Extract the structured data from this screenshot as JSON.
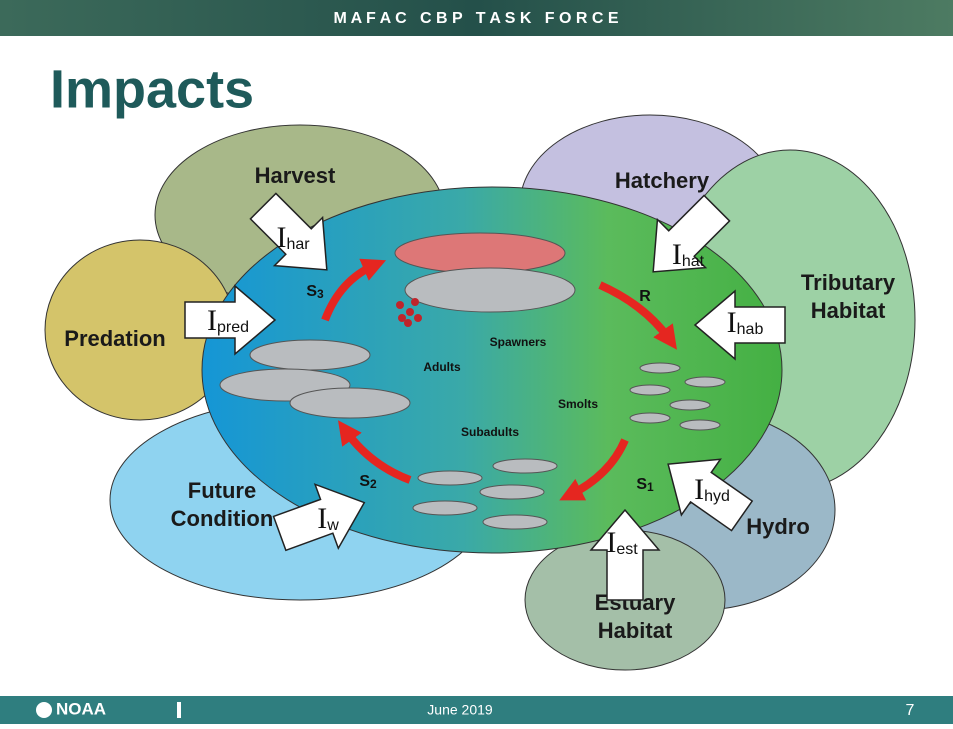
{
  "header": {
    "banner": "M A F A C   C B P   T A S K   F O R C E",
    "title": "Impacts"
  },
  "diagram": {
    "impacts": [
      {
        "label": [
          "Harvest"
        ],
        "symbol": "I",
        "sub": "har"
      },
      {
        "label": [
          "Hatchery"
        ],
        "symbol": "I",
        "sub": "hat"
      },
      {
        "label": [
          "Tributary",
          "Habitat"
        ],
        "symbol": "I",
        "sub": "hab"
      },
      {
        "label": [
          "Predation"
        ],
        "symbol": "I",
        "sub": "pred"
      },
      {
        "label": [
          "Future",
          "Condition"
        ],
        "symbol": "I",
        "sub": "w"
      },
      {
        "label": [
          "Hydro"
        ],
        "symbol": "I",
        "sub": "hyd"
      },
      {
        "label": [
          "Estuary",
          "Habitat"
        ],
        "symbol": "I",
        "sub": "est"
      }
    ],
    "transitions": [
      {
        "symbol": "S",
        "sub": "3"
      },
      {
        "symbol": "R",
        "sub": ""
      },
      {
        "symbol": "S",
        "sub": "1"
      },
      {
        "symbol": "S",
        "sub": "2"
      }
    ],
    "stages": [
      "Spawners",
      "Adults",
      "Smolts",
      "Subadults"
    ]
  },
  "footer": {
    "logo": "NOAA",
    "date": "June 2019",
    "page": "7"
  }
}
